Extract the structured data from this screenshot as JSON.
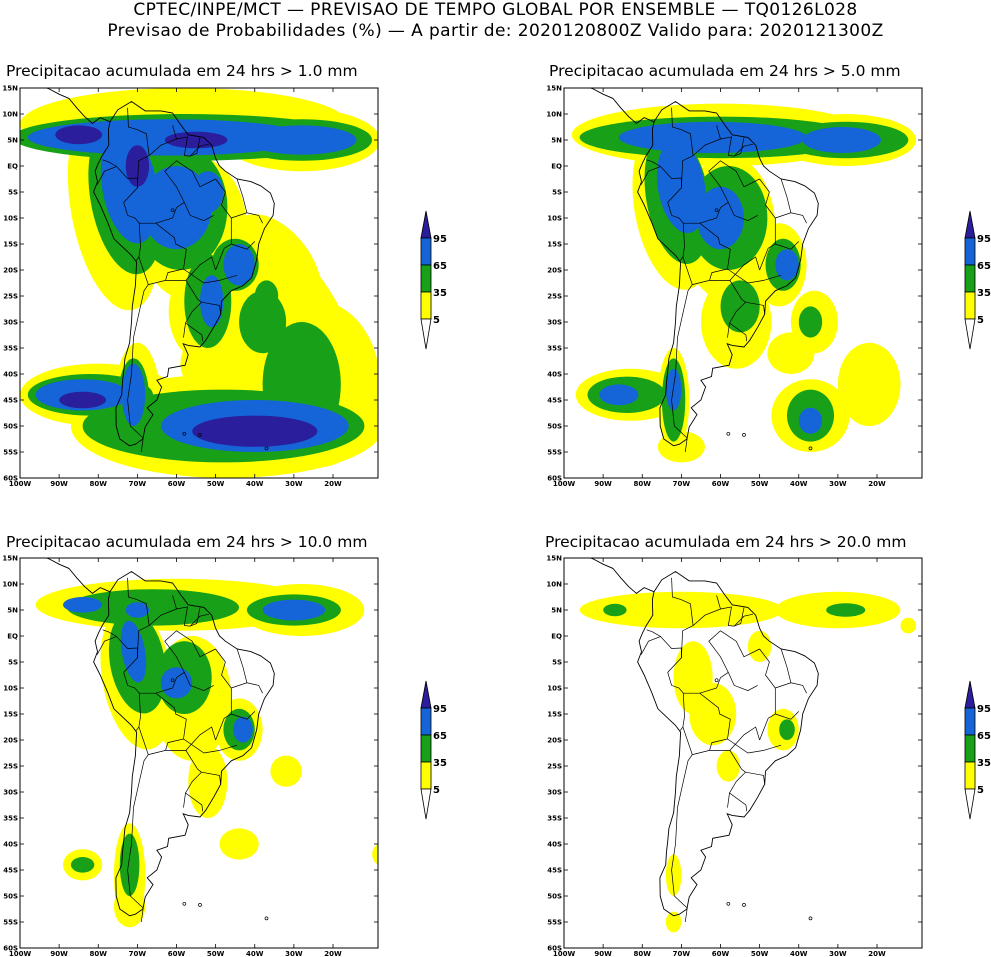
{
  "header": {
    "line1": "CPTEC/INPE/MCT — PREVISAO DE TEMPO GLOBAL POR ENSEMBLE — TQ0126L028",
    "line2": "Previsao de Probabilidades (%) —  A partir de: 2020120800Z  Valido para: 2020121300Z"
  },
  "colors": {
    "p5": "#ffff00",
    "p35": "#18a018",
    "p65": "#1565d8",
    "p95": "#2a1e9c",
    "coast": "#000000"
  },
  "axes": {
    "lat_labels": [
      "15N",
      "10N",
      "5N",
      "EQ",
      "5S",
      "10S",
      "15S",
      "20S",
      "25S",
      "30S",
      "35S",
      "40S",
      "45S",
      "50S",
      "55S",
      "60S"
    ],
    "lon_labels": [
      "100W",
      "90W",
      "80W",
      "70W",
      "60W",
      "50W",
      "40W",
      "30W",
      "20W"
    ]
  },
  "colorbar": {
    "levels": [
      "95",
      "65",
      "35",
      "5"
    ]
  },
  "panels": [
    {
      "title": "Precipitacao acumulada em 24 hrs > 1.0 mm",
      "threshold_mm": 1.0
    },
    {
      "title": "Precipitacao acumulada em 24 hrs > 5.0 mm",
      "threshold_mm": 5.0
    },
    {
      "title": "Precipitacao acumulada em 24 hrs > 10.0 mm",
      "threshold_mm": 10.0
    },
    {
      "title": "Precipitacao acumulada em 24 hrs > 20.0 mm",
      "threshold_mm": 20.0
    }
  ]
}
